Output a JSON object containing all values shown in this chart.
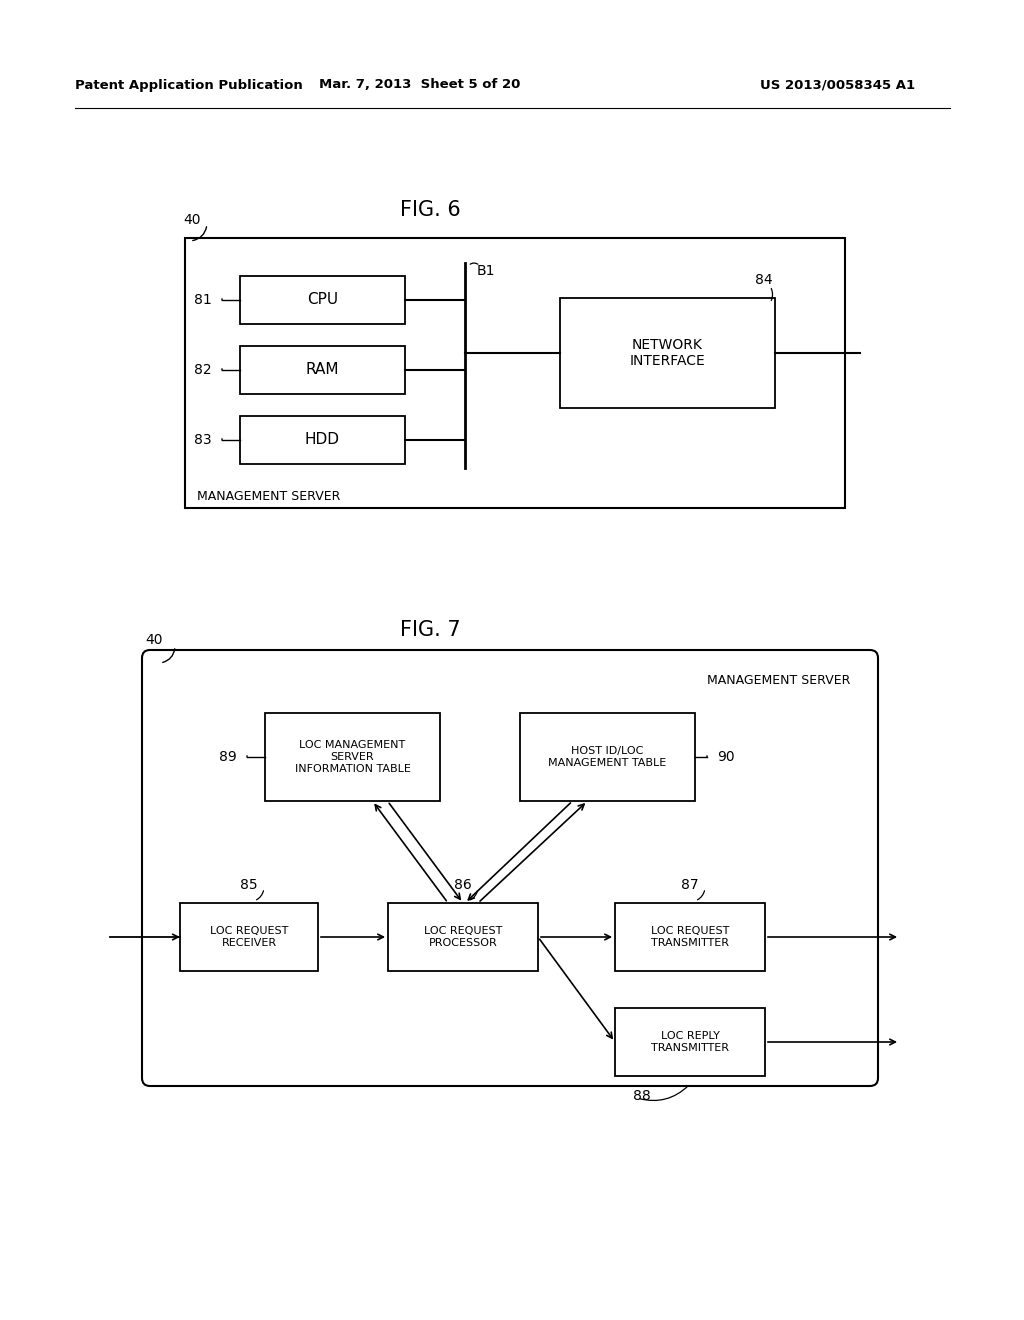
{
  "bg_color": "#ffffff",
  "text_color": "#000000",
  "header_left": "Patent Application Publication",
  "header_mid": "Mar. 7, 2013  Sheet 5 of 20",
  "header_right": "US 2013/0058345 A1",
  "fig6_title": "FIG. 6",
  "fig7_title": "FIG. 7",
  "fig6_label_40": "40",
  "fig6_label_B1": "B1",
  "fig6_label_84": "84",
  "fig6_label_81": "81",
  "fig6_label_82": "82",
  "fig6_label_83": "83",
  "fig6_label_mgmt": "MANAGEMENT SERVER",
  "fig6_cpu": "CPU",
  "fig6_ram": "RAM",
  "fig6_hdd": "HDD",
  "fig6_ni": "NETWORK\nINTERFACE",
  "fig7_label_40": "40",
  "fig7_label_mgmt": "MANAGEMENT SERVER",
  "fig7_label_85": "85",
  "fig7_label_86": "86",
  "fig7_label_87": "87",
  "fig7_label_88": "88",
  "fig7_label_89": "89",
  "fig7_label_90": "90",
  "fig7_loc_recv": "LOC REQUEST\nRECEIVER",
  "fig7_loc_proc": "LOC REQUEST\nPROCESSOR",
  "fig7_loc_trans": "LOC REQUEST\nTRANSMITTER",
  "fig7_loc_reply": "LOC REPLY\nTRANSMITTER",
  "fig7_loc_mgmt": "LOC MANAGEMENT\nSERVER\nINFORMATION TABLE",
  "fig7_host_mgmt": "HOST ID/LOC\nMANAGEMENT TABLE"
}
